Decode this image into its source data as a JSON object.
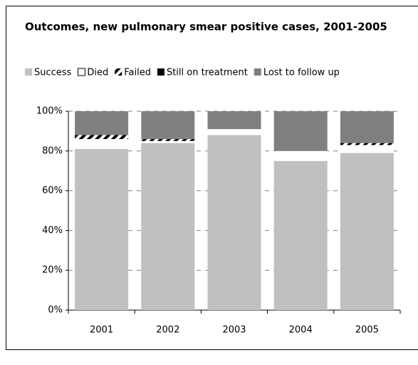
{
  "chart_data": {
    "type": "stacked-bar",
    "title": "Outcomes, new pulmonary smear positive cases, 2001-2005",
    "categories": [
      "2001",
      "2002",
      "2003",
      "2004",
      "2005"
    ],
    "series": [
      {
        "name": "Success",
        "color": "#c0c0c0",
        "values": [
          81,
          84,
          88,
          75,
          79
        ]
      },
      {
        "name": "Died",
        "color": "#ffffff",
        "values": [
          5,
          1,
          3,
          5,
          4
        ]
      },
      {
        "name": "Failed",
        "color": "#000000",
        "pattern": "diagonal-hatch",
        "values": [
          2,
          1,
          0,
          0,
          1
        ]
      },
      {
        "name": "Still on treatment",
        "color": "#000000",
        "values": [
          0,
          0,
          0,
          0,
          0
        ]
      },
      {
        "name": "Lost to follow up",
        "color": "#808080",
        "values": [
          12,
          14,
          9,
          20,
          16
        ]
      }
    ],
    "ylim": [
      0,
      100
    ],
    "yticks": [
      {
        "value": 0,
        "label": "0%"
      },
      {
        "value": 20,
        "label": "20%"
      },
      {
        "value": 40,
        "label": "40%"
      },
      {
        "value": 60,
        "label": "60%"
      },
      {
        "value": 80,
        "label": "80%"
      },
      {
        "value": 100,
        "label": "100%"
      }
    ],
    "grid": true,
    "legend": "top"
  }
}
